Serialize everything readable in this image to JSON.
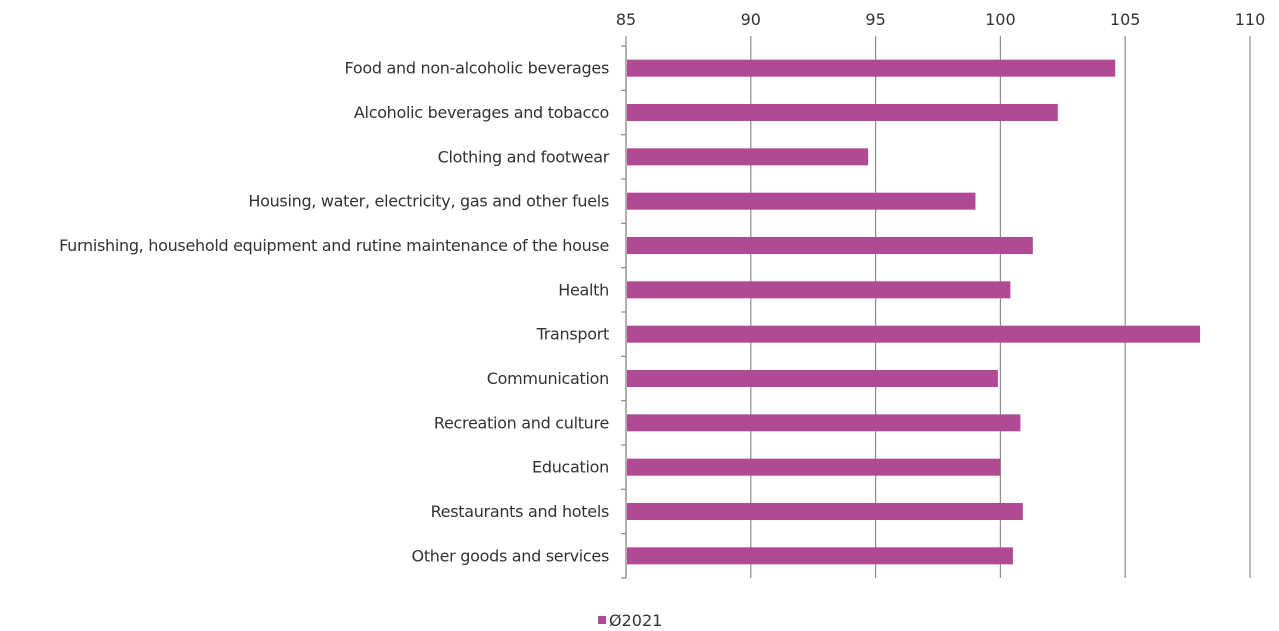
{
  "chart_data": {
    "type": "bar",
    "orientation": "horizontal",
    "title": "",
    "xlabel": "",
    "ylabel": "",
    "xlim": [
      85,
      110
    ],
    "x_ticks": [
      "85",
      "90",
      "95",
      "100",
      "105",
      "110"
    ],
    "grid": "vertical",
    "legend_position": "bottom",
    "categories": [
      "Food and non-alcoholic beverages",
      "Alcoholic beverages and tobacco",
      "Clothing and footwear",
      "Housing, water, electricity, gas and other fuels",
      "Furnishing, household equipment and rutine maintenance of the house",
      "Health",
      "Transport",
      "Communication",
      "Recreation and culture",
      "Education",
      "Restaurants and hotels",
      "Other goods and services"
    ],
    "series": [
      {
        "name": "Ø2021",
        "color": "#b04a94",
        "values": [
          104.6,
          102.3,
          94.7,
          99.0,
          101.3,
          100.4,
          108.0,
          99.9,
          100.8,
          100.0,
          100.9,
          100.5
        ]
      }
    ]
  }
}
